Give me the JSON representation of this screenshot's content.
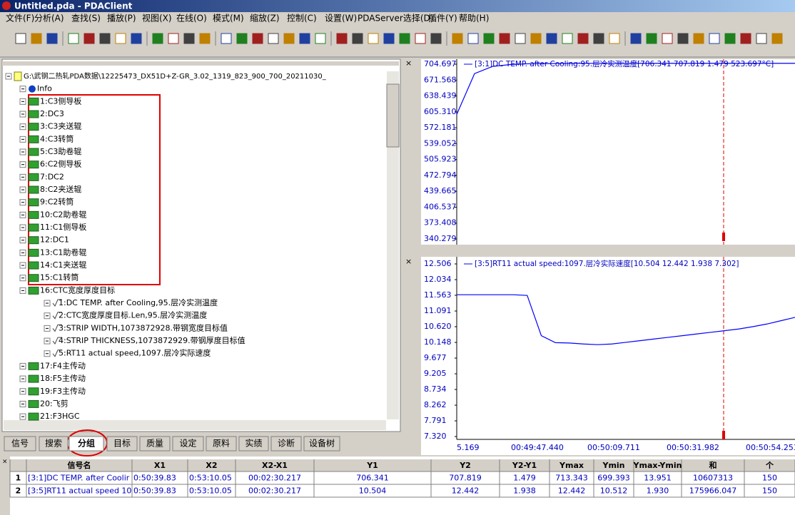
{
  "title_bar": "Untitled.pda - PDAClient",
  "menu": [
    "文件(F)",
    "分析(A)",
    "查找(S)",
    "播放(P)",
    "视图(X)",
    "在线(O)",
    "模式(M)",
    "缩放(Z)",
    "控制(C)",
    "设置(W)",
    "PDAServer选择(D)",
    "插件(Y)",
    "帮助(H)"
  ],
  "tree": {
    "root": "G:\\武钢二热轧PDA数据\\12225473_DX51D+Z-GR_3.02_1319_823_900_700_20211030_",
    "info": "Info",
    "nodes": [
      "1:C3侧导板",
      "2:DC3",
      "3:C3夹送辊",
      "4:C3转筒",
      "5:C3助卷辊",
      "6:C2侧导板",
      "7:DC2",
      "8:C2夹送辊",
      "9:C2转筒",
      "10:C2助卷辊",
      "11:C1侧导板",
      "12:DC1",
      "13:C1助卷辊",
      "14:C1夹送辊",
      "15:C1转筒",
      "16:CTC宽度厚度目标",
      "17:F4主传动",
      "18:F5主传动",
      "19:F3主传动",
      "20:飞剪",
      "21:F3HGC"
    ],
    "sub_items": [
      "1:DC TEMP. after Cooling,95.层冷实测温度",
      "2:CTC宽度厚度目标.Len,95.层冷实测温度",
      "3:STRIP WIDTH,1073872928.带钢宽度目标值",
      "4:STRIP THICKNESS,1073872929.带钢厚度目标值",
      "5:RT11 actual speed,1097.层冷实际速度"
    ]
  },
  "tabs": [
    "信号",
    "搜索",
    "分组",
    "目标",
    "质量",
    "设定",
    "原料",
    "实绩",
    "诊断",
    "设备树"
  ],
  "plots": [
    {
      "type": "line",
      "legend": "[3:1]DC TEMP. after Cooling:95.层冷实测温度[706.341  707.819  1.479  523.697°C]",
      "color": "#0000ff",
      "ylim": [
        340.279,
        704.697
      ],
      "yticks": [
        704.697,
        671.568,
        638.439,
        {
          "value": 605.31,
          "label": "605.310"
        },
        572.181,
        539.052,
        505.923,
        472.794,
        439.665,
        406.537,
        373.408,
        340.279
      ],
      "values": [
        600,
        685,
        700,
        704,
        705.5,
        706,
        706.3,
        706.5,
        706.5,
        706.5,
        706.6,
        706.6,
        706.6,
        706.6,
        706.6,
        706.6,
        706.6,
        706.6,
        706.6,
        706.6
      ]
    },
    {
      "type": "line",
      "legend": "[3:5]RT11 actual speed:1097.层冷实际速度[10.504  12.442  1.938  7.302]",
      "color": "#0000ff",
      "ylim": [
        7.32,
        12.506
      ],
      "yticks": [
        12.506,
        12.034,
        11.563,
        11.091,
        {
          "value": 10.62,
          "label": "10.620"
        },
        10.148,
        9.677,
        9.205,
        8.734,
        8.262,
        7.791,
        {
          "value": 7.32,
          "label": "7.320"
        }
      ],
      "values": [
        11.58,
        11.58,
        11.58,
        11.58,
        11.58,
        11.56,
        10.35,
        10.14,
        10.13,
        10.1,
        10.08,
        10.1,
        10.15,
        10.2,
        10.25,
        10.3,
        10.35,
        10.4,
        10.45,
        10.5,
        10.55,
        10.62,
        10.7,
        10.8,
        10.9
      ]
    }
  ],
  "x_axis_labels": [
    "5.169",
    "00:49:47.440",
    "00:50:09.711",
    "00:50:31.982",
    "00:50:54.253"
  ],
  "table": {
    "headers": [
      "信号名",
      "X1",
      "X2",
      "X2-X1",
      "Y1",
      "Y2",
      "Y2-Y1",
      "Ymax",
      "Ymin",
      "Ymax-Ymin",
      "和",
      "个"
    ],
    "rows": [
      [
        "1",
        "[3:1]DC TEMP. after Coolir",
        "0:50:39.83",
        "0:53:10.05",
        "00:02:30.217",
        "706.341",
        "707.819",
        "1.479",
        "713.343",
        "699.393",
        "13.951",
        "10607313",
        "150"
      ],
      [
        "2",
        "[3:5]RT11 actual speed 10",
        "0:50:39.83",
        "0:53:10.05",
        "00:02:30.217",
        "10.504",
        "12.442",
        "1.938",
        "12.442",
        "10.512",
        "1.930",
        "175966.047",
        "150"
      ]
    ]
  }
}
